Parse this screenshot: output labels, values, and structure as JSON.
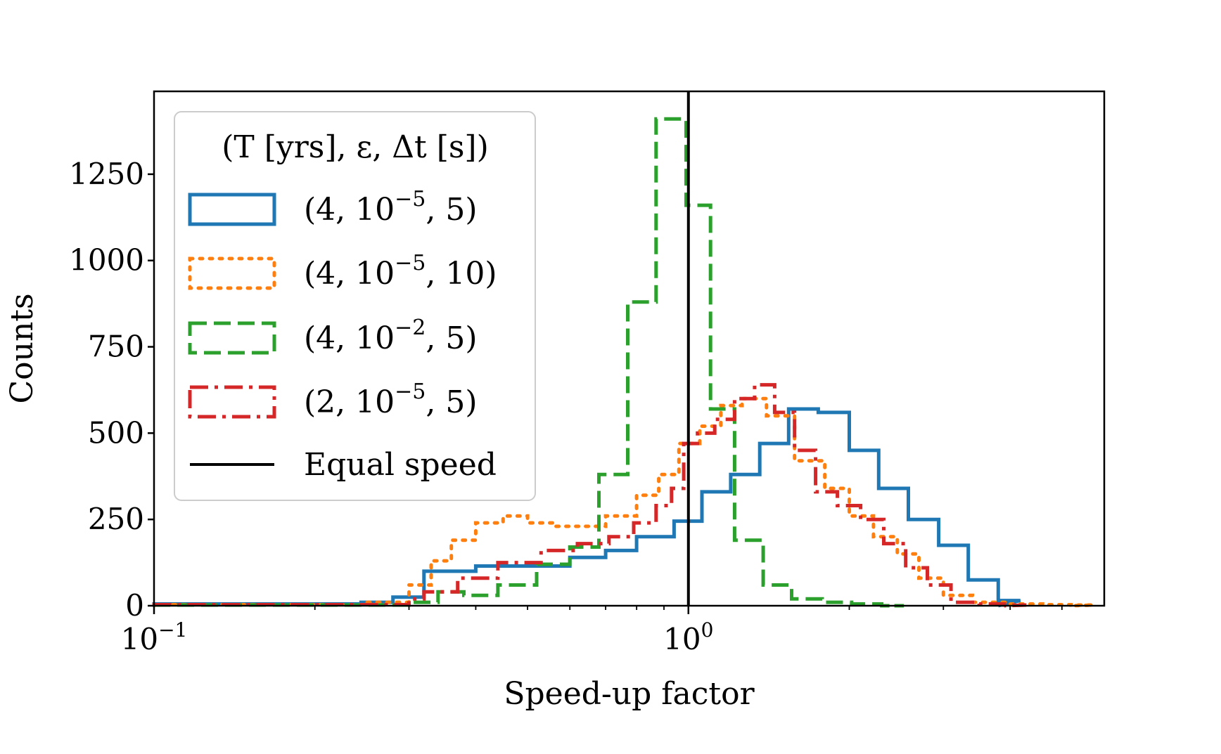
{
  "chart_data": {
    "type": "histogram",
    "xscale": "log",
    "xlabel": "Speed-up factor",
    "ylabel": "Counts",
    "xlim": [
      0.1,
      6.0
    ],
    "ylim": [
      0,
      1490
    ],
    "xticks": [
      {
        "value": 0.1,
        "base": "10",
        "exp": "−1"
      },
      {
        "value": 1.0,
        "base": "10",
        "exp": "0"
      }
    ],
    "yticks": [
      {
        "value": 0,
        "label": "0"
      },
      {
        "value": 250,
        "label": "250"
      },
      {
        "value": 500,
        "label": "500"
      },
      {
        "value": 750,
        "label": "750"
      },
      {
        "value": 1000,
        "label": "1000"
      },
      {
        "value": 1250,
        "label": "1250"
      }
    ],
    "legend": {
      "placement": "upper-left",
      "title": "(T [yrs], ε, Δt [s])",
      "entries": [
        {
          "label": "(4, 10",
          "exp": "−5",
          "tail": ", 5)"
        },
        {
          "label": "(4, 10",
          "exp": "−5",
          "tail": ", 10)"
        },
        {
          "label": "(4, 10",
          "exp": "−2",
          "tail": ", 5)"
        },
        {
          "label": "(2, 10",
          "exp": "−5",
          "tail": ", 5)"
        },
        {
          "label": "Equal speed",
          "exp": "",
          "tail": ""
        }
      ]
    },
    "vline": {
      "x": 1.0,
      "name": "Equal speed",
      "color": "#000000"
    },
    "series": [
      {
        "name": "(4, 10−5, 5)",
        "color": "#1f77b4",
        "style": "solid",
        "edges": [
          0.1,
          0.244,
          0.28,
          0.32,
          0.4,
          0.6,
          0.7,
          0.8,
          0.94,
          1.06,
          1.2,
          1.36,
          1.54,
          1.75,
          2.0,
          2.27,
          2.58,
          2.94,
          3.34,
          3.8
        ],
        "counts": [
          5,
          10,
          25,
          100,
          115,
          140,
          160,
          200,
          245,
          330,
          380,
          470,
          570,
          560,
          450,
          340,
          250,
          175,
          75,
          15
        ]
      },
      {
        "name": "(4, 10−5, 10)",
        "color": "#ff7f0e",
        "style": "dotted",
        "edges": [
          0.1,
          0.25,
          0.3,
          0.33,
          0.36,
          0.4,
          0.45,
          0.5,
          0.56,
          0.63,
          0.7,
          0.8,
          0.88,
          0.96,
          1.05,
          1.15,
          1.26,
          1.4,
          1.58,
          1.8,
          2.0,
          2.22,
          2.46,
          2.7,
          3.0,
          3.4,
          4.0,
          4.6,
          5.2
        ],
        "counts": [
          3,
          10,
          60,
          130,
          190,
          240,
          260,
          240,
          230,
          230,
          260,
          320,
          380,
          470,
          520,
          580,
          600,
          550,
          420,
          340,
          260,
          200,
          150,
          80,
          30,
          10,
          5,
          3,
          2
        ]
      },
      {
        "name": "(4, 10−2, 5)",
        "color": "#2ca02c",
        "style": "dashed",
        "edges": [
          0.1,
          0.3,
          0.34,
          0.38,
          0.44,
          0.52,
          0.6,
          0.68,
          0.77,
          0.87,
          0.99,
          1.1,
          1.22,
          1.38,
          1.56,
          1.78,
          2.02,
          2.3
        ],
        "counts": [
          2,
          10,
          40,
          30,
          60,
          120,
          170,
          380,
          880,
          1410,
          1160,
          570,
          190,
          60,
          20,
          10,
          5,
          0
        ]
      },
      {
        "name": "(2, 10−5, 5)",
        "color": "#d62728",
        "style": "dashdot",
        "edges": [
          0.1,
          0.3,
          0.32,
          0.37,
          0.44,
          0.53,
          0.62,
          0.71,
          0.79,
          0.87,
          0.93,
          0.98,
          1.04,
          1.12,
          1.22,
          1.33,
          1.45,
          1.58,
          1.73,
          1.9,
          2.1,
          2.32,
          2.55,
          2.8,
          3.1,
          3.5,
          3.9
        ],
        "counts": [
          3,
          20,
          40,
          80,
          125,
          160,
          180,
          200,
          240,
          290,
          340,
          470,
          500,
          540,
          600,
          640,
          560,
          450,
          330,
          290,
          250,
          180,
          110,
          60,
          10,
          5,
          2
        ]
      }
    ]
  }
}
